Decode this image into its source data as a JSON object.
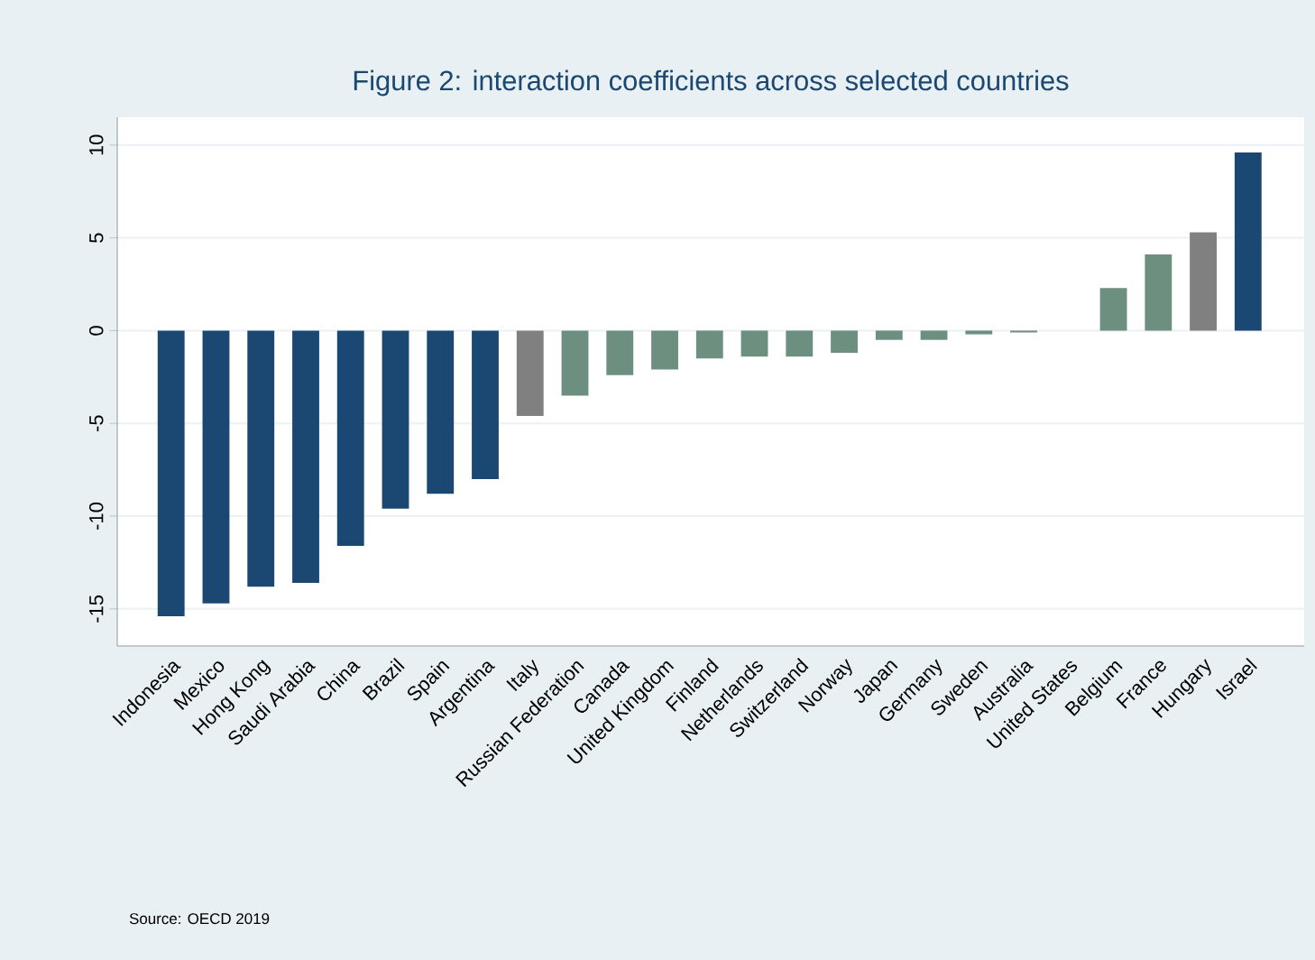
{
  "chart_data": {
    "type": "bar",
    "title": "Figure 2: interaction coefficients across selected countries",
    "categories": [
      "Indonesia",
      "Mexico",
      "Hong Kong",
      "Saudi Arabia",
      "China",
      "Brazil",
      "Spain",
      "Argentina",
      "Italy",
      "Russian Federation",
      "Canada",
      "United Kingdom",
      "Finland",
      "Netherlands",
      "Switzerland",
      "Norway",
      "Japan",
      "Germany",
      "Sweden",
      "Australia",
      "United States",
      "Belgium",
      "France",
      "Hungary",
      "Israel"
    ],
    "values": [
      -15.4,
      -14.7,
      -13.8,
      -13.6,
      -11.6,
      -9.6,
      -8.8,
      -8.0,
      -4.6,
      -3.5,
      -2.4,
      -2.1,
      -1.5,
      -1.4,
      -1.4,
      -1.2,
      -0.5,
      -0.5,
      -0.2,
      -0.1,
      0,
      2.3,
      4.1,
      5.3,
      9.6
    ],
    "colors": [
      "#1b4872",
      "#1b4872",
      "#1b4872",
      "#1b4872",
      "#1b4872",
      "#1b4872",
      "#1b4872",
      "#1b4872",
      "#808080",
      "#6d8f80",
      "#6d8f80",
      "#6d8f80",
      "#6d8f80",
      "#6d8f80",
      "#6d8f80",
      "#6d8f80",
      "#6d8f80",
      "#6d8f80",
      "#6d8f80",
      "#6d8f80",
      "#6d8f80",
      "#6d8f80",
      "#6d8f80",
      "#808080",
      "#1b4872"
    ],
    "ylim": [
      -17,
      11.5
    ],
    "yticks": [
      -15,
      -10,
      -5,
      0,
      5,
      10
    ],
    "grid": "y",
    "annotations": [
      "Source: OECD 2019"
    ]
  }
}
